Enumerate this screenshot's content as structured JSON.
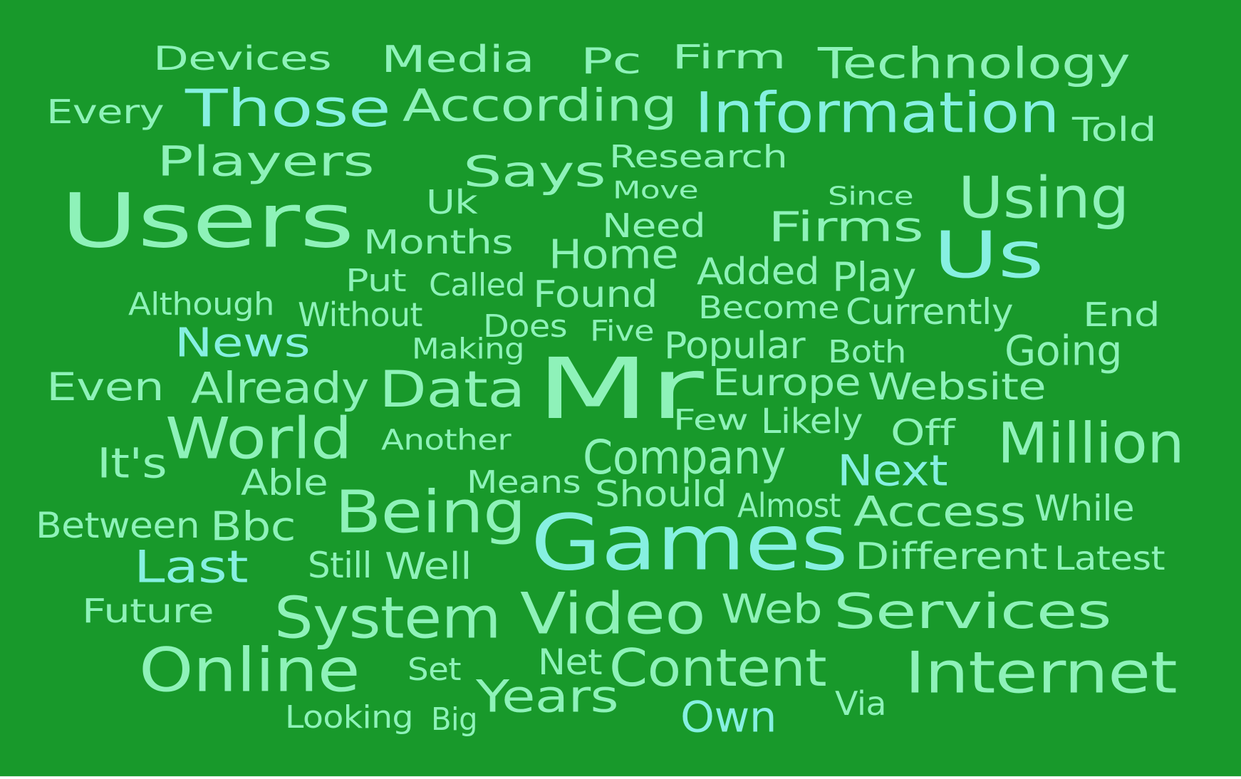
{
  "cloud": {
    "background": "#18992b",
    "colors": {
      "light": "#8ef2b9",
      "cyan": "#86f0e1",
      "pale": "#9ef5c4"
    },
    "words": [
      {
        "text": "Devices",
        "color": "light"
      },
      {
        "text": "Media",
        "color": "light"
      },
      {
        "text": "Pc",
        "color": "light"
      },
      {
        "text": "Firm",
        "color": "light"
      },
      {
        "text": "Technology",
        "color": "light"
      },
      {
        "text": "Every",
        "color": "light"
      },
      {
        "text": "Those",
        "color": "cyan"
      },
      {
        "text": "According",
        "color": "light"
      },
      {
        "text": "Information",
        "color": "cyan"
      },
      {
        "text": "Told",
        "color": "light"
      },
      {
        "text": "Players",
        "color": "light"
      },
      {
        "text": "Says",
        "color": "light"
      },
      {
        "text": "Research",
        "color": "light"
      },
      {
        "text": "Move",
        "color": "light"
      },
      {
        "text": "Since",
        "color": "light"
      },
      {
        "text": "Using",
        "color": "light"
      },
      {
        "text": "Users",
        "color": "light"
      },
      {
        "text": "Uk",
        "color": "light"
      },
      {
        "text": "Months",
        "color": "light"
      },
      {
        "text": "Need",
        "color": "light"
      },
      {
        "text": "Firms",
        "color": "light"
      },
      {
        "text": "Us",
        "color": "cyan"
      },
      {
        "text": "Home",
        "color": "light"
      },
      {
        "text": "Put",
        "color": "light"
      },
      {
        "text": "Called",
        "color": "light"
      },
      {
        "text": "Added",
        "color": "light"
      },
      {
        "text": "Play",
        "color": "light"
      },
      {
        "text": "Found",
        "color": "light"
      },
      {
        "text": "Although",
        "color": "light"
      },
      {
        "text": "Without",
        "color": "light"
      },
      {
        "text": "Become",
        "color": "light"
      },
      {
        "text": "Currently",
        "color": "light"
      },
      {
        "text": "End",
        "color": "light"
      },
      {
        "text": "Does",
        "color": "light"
      },
      {
        "text": "Five",
        "color": "light"
      },
      {
        "text": "News",
        "color": "cyan"
      },
      {
        "text": "Making",
        "color": "light"
      },
      {
        "text": "Popular",
        "color": "light"
      },
      {
        "text": "Both",
        "color": "light"
      },
      {
        "text": "Going",
        "color": "light"
      },
      {
        "text": "Mr",
        "color": "light"
      },
      {
        "text": "Even",
        "color": "light"
      },
      {
        "text": "Already",
        "color": "light"
      },
      {
        "text": "Data",
        "color": "light"
      },
      {
        "text": "Europe",
        "color": "light"
      },
      {
        "text": "Website",
        "color": "light"
      },
      {
        "text": "Few",
        "color": "light"
      },
      {
        "text": "Likely",
        "color": "light"
      },
      {
        "text": "World",
        "color": "light"
      },
      {
        "text": "Off",
        "color": "light"
      },
      {
        "text": "Million",
        "color": "light"
      },
      {
        "text": "Another",
        "color": "light"
      },
      {
        "text": "It's",
        "color": "light"
      },
      {
        "text": "Company",
        "color": "light"
      },
      {
        "text": "Next",
        "color": "cyan"
      },
      {
        "text": "Able",
        "color": "light"
      },
      {
        "text": "Means",
        "color": "light"
      },
      {
        "text": "Should",
        "color": "light"
      },
      {
        "text": "Almost",
        "color": "light"
      },
      {
        "text": "Being",
        "color": "light"
      },
      {
        "text": "Access",
        "color": "light"
      },
      {
        "text": "While",
        "color": "light"
      },
      {
        "text": "Between",
        "color": "light"
      },
      {
        "text": "Bbc",
        "color": "light"
      },
      {
        "text": "Games",
        "color": "cyan"
      },
      {
        "text": "Different",
        "color": "light"
      },
      {
        "text": "Latest",
        "color": "light"
      },
      {
        "text": "Last",
        "color": "cyan"
      },
      {
        "text": "Still",
        "color": "light"
      },
      {
        "text": "Well",
        "color": "light"
      },
      {
        "text": "Future",
        "color": "light"
      },
      {
        "text": "System",
        "color": "light"
      },
      {
        "text": "Video",
        "color": "light"
      },
      {
        "text": "Web",
        "color": "light"
      },
      {
        "text": "Services",
        "color": "light"
      },
      {
        "text": "Online",
        "color": "light"
      },
      {
        "text": "Set",
        "color": "light"
      },
      {
        "text": "Net",
        "color": "light"
      },
      {
        "text": "Content",
        "color": "light"
      },
      {
        "text": "Internet",
        "color": "light"
      },
      {
        "text": "Years",
        "color": "light"
      },
      {
        "text": "Looking",
        "color": "light"
      },
      {
        "text": "Big",
        "color": "light"
      },
      {
        "text": "Own",
        "color": "cyan"
      },
      {
        "text": "Via",
        "color": "light"
      }
    ]
  }
}
